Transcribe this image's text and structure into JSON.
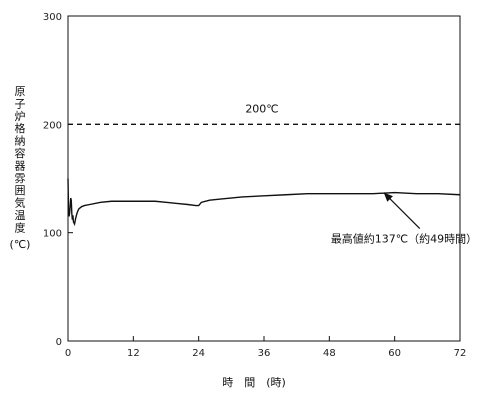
{
  "chart_data": {
    "type": "line",
    "title": "",
    "xlabel": "時　間　(時)",
    "ylabel": "原子炉格納容器雰囲気温度",
    "ylabel_unit": "(℃)",
    "xlim": [
      0,
      72
    ],
    "ylim": [
      0,
      300
    ],
    "x_ticks": [
      0,
      12,
      24,
      36,
      48,
      60,
      72
    ],
    "y_ticks": [
      0,
      100,
      200,
      300
    ],
    "grid": false,
    "series": [
      {
        "x": [
          0,
          0.1,
          0.2,
          0.3,
          0.4,
          0.5,
          0.6,
          0.7,
          0.8,
          0.9,
          1.0,
          1.2,
          1.4,
          1.6,
          1.8,
          2.0,
          2.5,
          3,
          4,
          6,
          8,
          10,
          12,
          14,
          16,
          18,
          20,
          22,
          23.5,
          24,
          24.5,
          26,
          28,
          32,
          36,
          40,
          44,
          48,
          52,
          56,
          60,
          64,
          68,
          72
        ],
        "y": [
          150,
          120,
          115,
          118,
          125,
          132,
          130,
          118,
          112,
          116,
          110,
          108,
          113,
          117,
          120,
          122,
          124,
          125,
          126,
          128,
          129,
          129,
          129,
          129,
          129,
          128,
          127,
          126,
          125,
          125,
          128,
          130,
          131,
          133,
          134,
          135,
          136,
          136,
          136,
          136,
          137,
          136,
          136,
          135
        ]
      }
    ],
    "reference_line": {
      "y": 200,
      "style": "dashed",
      "label": "200℃"
    },
    "annotations": [
      {
        "text": "最高値約137℃（約49時間）",
        "x": 58,
        "y": 137
      }
    ]
  }
}
